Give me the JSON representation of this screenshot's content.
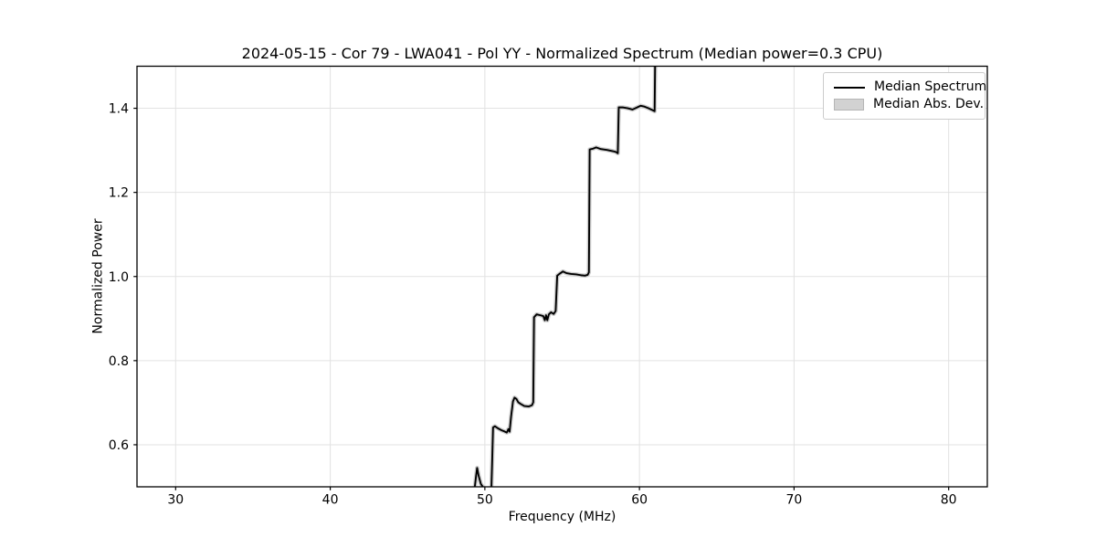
{
  "chart_data": {
    "type": "line",
    "title": "2024-05-15 - Cor 79 - LWA041 - Pol YY - Normalized Spectrum (Median power=0.3 CPU)",
    "xlabel": "Frequency (MHz)",
    "ylabel": "Normalized Power",
    "xlim": [
      27.5,
      82.5
    ],
    "ylim": [
      0.5,
      1.5
    ],
    "x_ticks": [
      30,
      40,
      50,
      60,
      70,
      80
    ],
    "y_ticks": [
      0.6,
      0.8,
      1.0,
      1.2,
      1.4
    ],
    "grid": true,
    "grid_color": "#e2e2e2",
    "axis_color": "#000000",
    "background_color": "#ffffff",
    "legend": {
      "position": "upper-right",
      "entries": [
        {
          "label": "Median Spectrum",
          "type": "line",
          "color": "#000000"
        },
        {
          "label": "Median Abs. Dev.",
          "type": "patch",
          "color": "#cccccc"
        }
      ]
    },
    "series": [
      {
        "name": "Median Spectrum",
        "color": "#000000",
        "line_width": 1.9,
        "points": [
          [
            49.32,
            0.49
          ],
          [
            49.42,
            0.522
          ],
          [
            49.5,
            0.545
          ],
          [
            49.6,
            0.526
          ],
          [
            49.74,
            0.507
          ],
          [
            49.92,
            0.497
          ],
          [
            50.1,
            0.493
          ],
          [
            50.42,
            0.492
          ],
          [
            50.48,
            0.57
          ],
          [
            50.53,
            0.641
          ],
          [
            50.65,
            0.644
          ],
          [
            50.85,
            0.639
          ],
          [
            51.05,
            0.635
          ],
          [
            51.25,
            0.632
          ],
          [
            51.42,
            0.629
          ],
          [
            51.52,
            0.637
          ],
          [
            51.6,
            0.631
          ],
          [
            51.7,
            0.668
          ],
          [
            51.82,
            0.703
          ],
          [
            51.92,
            0.712
          ],
          [
            52.04,
            0.709
          ],
          [
            52.16,
            0.701
          ],
          [
            52.32,
            0.697
          ],
          [
            52.55,
            0.692
          ],
          [
            52.85,
            0.691
          ],
          [
            53.05,
            0.694
          ],
          [
            53.13,
            0.701
          ],
          [
            53.18,
            0.903
          ],
          [
            53.35,
            0.91
          ],
          [
            53.58,
            0.908
          ],
          [
            53.78,
            0.906
          ],
          [
            53.88,
            0.896
          ],
          [
            53.96,
            0.908
          ],
          [
            54.04,
            0.896
          ],
          [
            54.14,
            0.91
          ],
          [
            54.28,
            0.915
          ],
          [
            54.45,
            0.911
          ],
          [
            54.58,
            0.918
          ],
          [
            54.68,
            1.002
          ],
          [
            54.85,
            1.007
          ],
          [
            55.05,
            1.012
          ],
          [
            55.28,
            1.008
          ],
          [
            55.58,
            1.006
          ],
          [
            55.92,
            1.005
          ],
          [
            56.22,
            1.003
          ],
          [
            56.48,
            1.002
          ],
          [
            56.65,
            1.004
          ],
          [
            56.73,
            1.01
          ],
          [
            56.78,
            1.302
          ],
          [
            57.0,
            1.304
          ],
          [
            57.2,
            1.307
          ],
          [
            57.5,
            1.303
          ],
          [
            57.9,
            1.301
          ],
          [
            58.28,
            1.298
          ],
          [
            58.48,
            1.296
          ],
          [
            58.6,
            1.293
          ],
          [
            58.66,
            1.402
          ],
          [
            58.95,
            1.402
          ],
          [
            59.25,
            1.4
          ],
          [
            59.55,
            1.397
          ],
          [
            59.85,
            1.402
          ],
          [
            60.08,
            1.406
          ],
          [
            60.32,
            1.404
          ],
          [
            60.58,
            1.4
          ],
          [
            60.82,
            1.396
          ],
          [
            60.98,
            1.393
          ],
          [
            61.02,
            1.53
          ]
        ]
      },
      {
        "name": "Median Abs. Dev.",
        "render": "band-around-median",
        "color": "#cccccc",
        "band_stroke_width": 4.6
      }
    ]
  }
}
